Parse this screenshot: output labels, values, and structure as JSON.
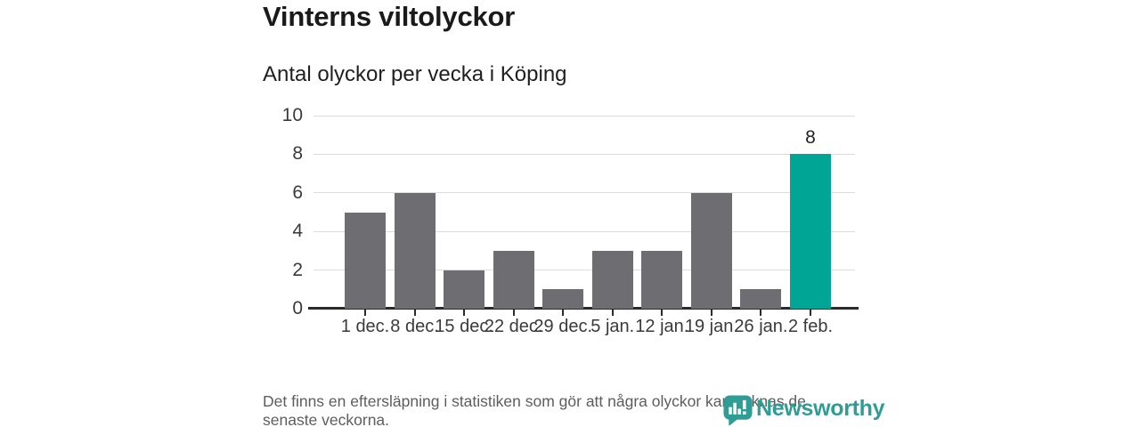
{
  "header": {
    "title": "Vinterns viltolyckor",
    "subtitle": "Antal olyckor per vecka i Köping"
  },
  "chart_data": {
    "type": "bar",
    "title": "Vinterns viltolyckor",
    "subtitle": "Antal olyckor per vecka i Köping",
    "categories": [
      "1 dec.",
      "8 dec.",
      "15 dec.",
      "22 dec.",
      "29 dec.",
      "5 jan.",
      "12 jan.",
      "19 jan.",
      "26 jan.",
      "2 feb."
    ],
    "values": [
      5,
      6,
      2,
      3,
      1,
      3,
      3,
      6,
      1,
      8
    ],
    "highlight_index": 9,
    "value_labels": {
      "9": "8"
    },
    "xlabel": "",
    "ylabel": "",
    "ylim": [
      0,
      10
    ],
    "yticks": [
      0,
      2,
      4,
      6,
      8,
      10
    ],
    "grid": "horizontal",
    "legend": "none",
    "colors": {
      "bar": "#6e6d72",
      "highlight": "#00a596",
      "gridline": "#dcdcdc",
      "axis": "#2b2b2b",
      "tick_label": "#3a3a3a"
    }
  },
  "footer": {
    "note": "Det finns en eftersläpning i statistiken som gör att några olyckor kan saknas de\nsenaste veckorna.",
    "brand": "Newsworthy",
    "brand_color": "#2d9d95",
    "brand_icon": "newsworthy-pin-icon"
  }
}
